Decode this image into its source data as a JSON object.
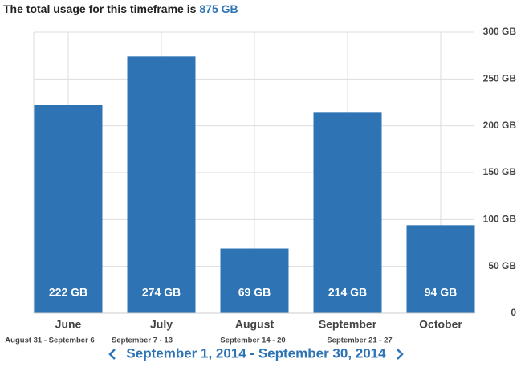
{
  "header": {
    "title": "The total usage for this timeframe is",
    "total": "875 GB"
  },
  "chart_data": {
    "type": "bar",
    "categories": [
      "June",
      "July",
      "August",
      "September",
      "October"
    ],
    "values": [
      222,
      274,
      69,
      214,
      94
    ],
    "value_labels": [
      "222 GB",
      "274 GB",
      "69 GB",
      "214 GB",
      "94 GB"
    ],
    "color": "#2e74b5",
    "ylim": [
      0,
      300
    ],
    "yticks": [
      0,
      {
        "value": 50,
        "label": "50 GB"
      },
      {
        "value": 100,
        "label": "100 GB"
      },
      {
        "value": 150,
        "label": "150 GB"
      },
      {
        "value": 200,
        "label": "200 GB"
      },
      {
        "value": 250,
        "label": "250 GB"
      },
      {
        "value": 300,
        "label": "300 GB"
      }
    ],
    "grid": true
  },
  "week_labels": [
    "August 31 - September 6",
    "September 7 - 13",
    "September 14 - 20",
    "September 21 - 27"
  ],
  "date_range": "September 1, 2014 - September 30, 2014"
}
